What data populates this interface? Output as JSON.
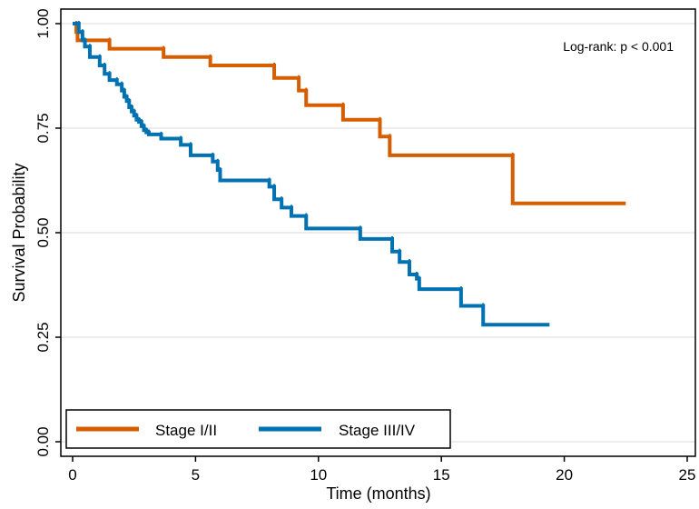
{
  "chart_data": {
    "type": "line",
    "subtype": "kaplan-meier-step",
    "xlabel": "Time (months)",
    "ylabel": "Survival Probability",
    "xlim": [
      0,
      25
    ],
    "ylim": [
      0,
      1
    ],
    "xticks": [
      0,
      5,
      10,
      15,
      20,
      25
    ],
    "yticks": [
      0,
      0.25,
      0.5,
      0.75,
      1.0
    ],
    "xtick_labels": [
      "0",
      "5",
      "10",
      "15",
      "20",
      "25"
    ],
    "ytick_labels": [
      "0.00",
      "0.25",
      "0.50",
      "0.75",
      "1.00"
    ],
    "grid": "horizontal",
    "annotation": "Log-rank: p < 0.001",
    "legend_position": "bottom",
    "series": [
      {
        "name": "Stage I/II",
        "color": "#d55e00",
        "x": [
          0,
          0.15,
          0.2,
          1.5,
          3.7,
          5.6,
          8.2,
          9.2,
          9.5,
          11.0,
          12.5,
          12.9,
          17.9,
          22.5
        ],
        "y": [
          1.0,
          0.98,
          0.96,
          0.94,
          0.92,
          0.9,
          0.87,
          0.84,
          0.805,
          0.77,
          0.73,
          0.685,
          0.57,
          0.57
        ]
      },
      {
        "name": "Stage III/IV",
        "color": "#0072b2",
        "x": [
          0,
          0.25,
          0.4,
          0.5,
          0.7,
          1.1,
          1.3,
          1.5,
          1.8,
          2.0,
          2.1,
          2.2,
          2.3,
          2.4,
          2.5,
          2.6,
          2.7,
          2.8,
          2.9,
          3.0,
          3.1,
          3.6,
          4.4,
          4.8,
          5.7,
          5.9,
          6.0,
          8.0,
          8.2,
          8.5,
          8.9,
          9.5,
          11.7,
          13.0,
          13.3,
          13.7,
          14.0,
          14.1,
          15.8,
          16.7,
          19.4
        ],
        "y": [
          1.0,
          0.98,
          0.96,
          0.945,
          0.92,
          0.9,
          0.88,
          0.865,
          0.855,
          0.84,
          0.825,
          0.815,
          0.8,
          0.79,
          0.78,
          0.77,
          0.765,
          0.755,
          0.745,
          0.74,
          0.735,
          0.725,
          0.71,
          0.685,
          0.67,
          0.65,
          0.625,
          0.61,
          0.58,
          0.56,
          0.54,
          0.51,
          0.485,
          0.455,
          0.43,
          0.4,
          0.39,
          0.365,
          0.325,
          0.28,
          0.28
        ]
      }
    ]
  }
}
